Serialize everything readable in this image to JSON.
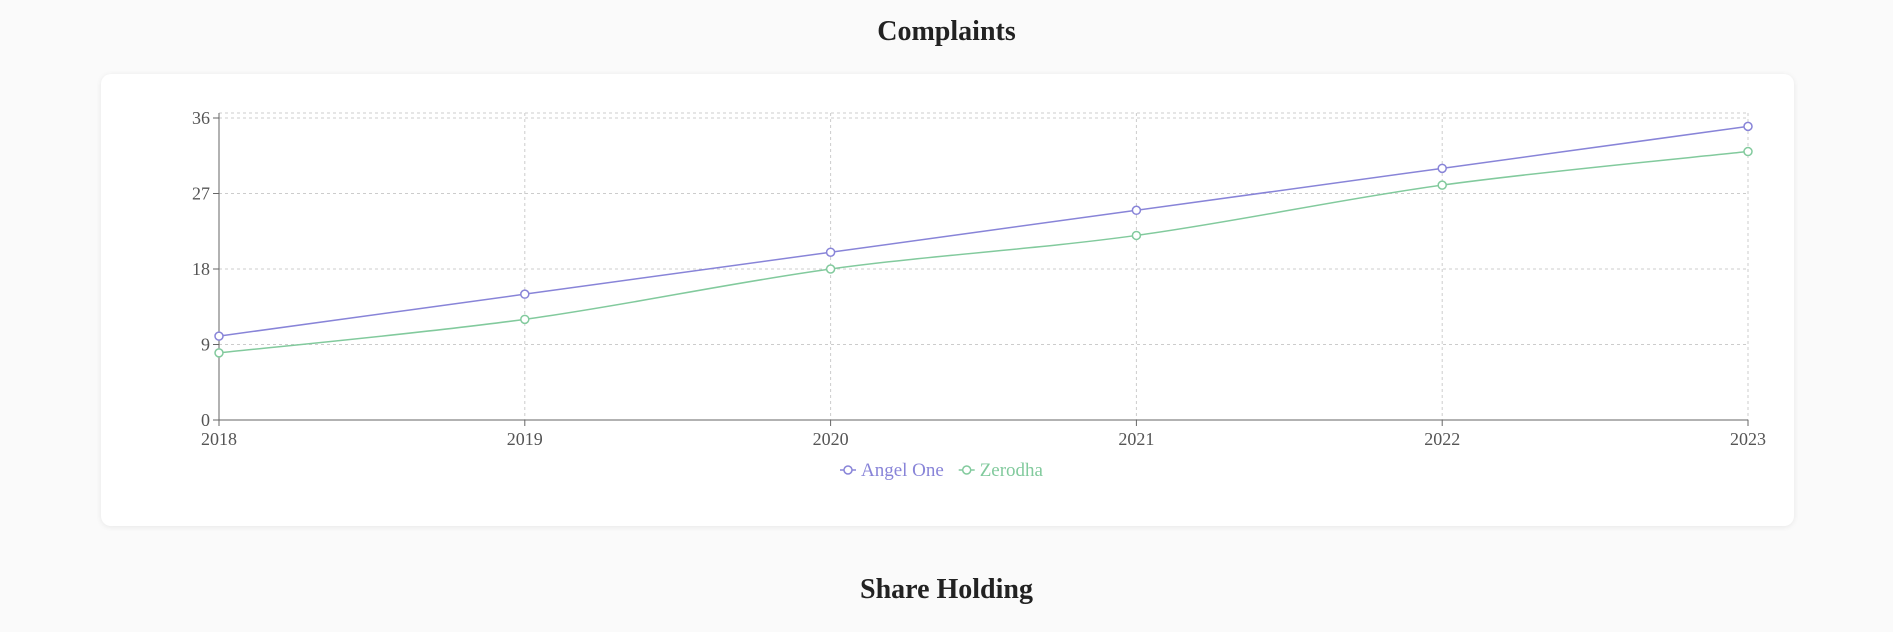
{
  "sections": {
    "complaints_title": "Complaints",
    "share_holding_title": "Share Holding"
  },
  "chart_data": {
    "type": "line",
    "title": "Complaints",
    "x": [
      "2018",
      "2019",
      "2020",
      "2021",
      "2022",
      "2023"
    ],
    "series": [
      {
        "name": "Angel One",
        "color": "#8884d8",
        "values": [
          10,
          15,
          20,
          25,
          30,
          35
        ]
      },
      {
        "name": "Zerodha",
        "color": "#82ca9d",
        "values": [
          8,
          12,
          18,
          22,
          28,
          32
        ]
      }
    ],
    "yticks": [
      0,
      9,
      18,
      27,
      36
    ],
    "ylim": [
      0,
      36
    ],
    "grid": true,
    "legend": "bottom-center"
  }
}
